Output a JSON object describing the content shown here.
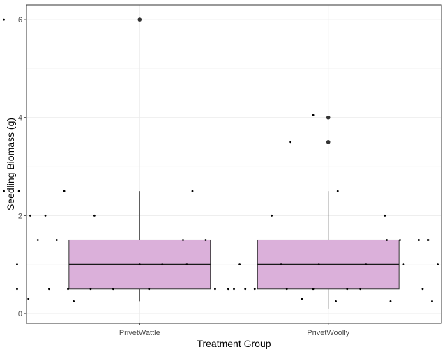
{
  "chart_data": {
    "type": "boxplot",
    "xlabel": "Treatment Group",
    "ylabel": "Seedling Biomass (g)",
    "ylim": [
      -0.2,
      6.3
    ],
    "yticks": [
      0,
      2,
      4,
      6
    ],
    "categories": [
      "PrivetWattle",
      "PrivetWoolly"
    ],
    "grid": true,
    "box_fill": "#dbb0da",
    "boxes": [
      {
        "category": "PrivetWattle",
        "q1": 0.5,
        "median": 1.0,
        "q3": 1.5,
        "whisker_low": 0.25,
        "whisker_high": 2.5,
        "outliers": [
          6.0
        ]
      },
      {
        "category": "PrivetWoolly",
        "q1": 0.5,
        "median": 1.0,
        "q3": 1.5,
        "whisker_low": 0.1,
        "whisker_high": 2.5,
        "outliers": [
          4.0,
          3.5
        ]
      }
    ],
    "jitter_points": [
      [
        [
          0.28,
          6.0
        ],
        [
          0.28,
          2.5
        ],
        [
          0.36,
          2.5
        ],
        [
          0.6,
          2.5
        ],
        [
          1.28,
          2.5
        ],
        [
          0.42,
          2.0
        ],
        [
          0.5,
          2.0
        ],
        [
          0.76,
          2.0
        ],
        [
          0.46,
          1.5
        ],
        [
          0.56,
          1.5
        ],
        [
          1.23,
          1.5
        ],
        [
          1.35,
          1.5
        ],
        [
          0.35,
          0.5
        ],
        [
          0.52,
          0.5
        ],
        [
          0.62,
          0.5
        ],
        [
          0.74,
          0.5
        ],
        [
          0.86,
          0.5
        ],
        [
          1.05,
          0.5
        ],
        [
          1.4,
          0.5
        ],
        [
          1.47,
          0.5
        ],
        [
          1.56,
          0.5
        ],
        [
          1.61,
          0.5
        ],
        [
          0.35,
          1.0
        ],
        [
          1.0,
          1.0
        ],
        [
          1.12,
          1.0
        ],
        [
          1.25,
          1.0
        ],
        [
          1.53,
          1.0
        ],
        [
          1.75,
          1.0
        ],
        [
          0.41,
          0.3
        ],
        [
          0.65,
          0.25
        ]
      ],
      [
        [
          1.92,
          4.05
        ],
        [
          1.8,
          3.5
        ],
        [
          2.05,
          2.5
        ],
        [
          1.7,
          2.0
        ],
        [
          2.3,
          2.0
        ],
        [
          2.91,
          2.0
        ],
        [
          2.31,
          1.5
        ],
        [
          2.38,
          1.5
        ],
        [
          2.48,
          1.5
        ],
        [
          2.53,
          1.5
        ],
        [
          1.5,
          0.5
        ],
        [
          1.78,
          0.5
        ],
        [
          1.92,
          0.5
        ],
        [
          2.1,
          0.5
        ],
        [
          2.17,
          0.5
        ],
        [
          2.5,
          0.5
        ],
        [
          2.74,
          0.5
        ],
        [
          3.0,
          0.5
        ],
        [
          1.95,
          1.0
        ],
        [
          2.2,
          1.0
        ],
        [
          2.4,
          1.0
        ],
        [
          2.58,
          1.0
        ],
        [
          2.7,
          1.0
        ],
        [
          3.02,
          1.0
        ],
        [
          1.86,
          0.3
        ],
        [
          2.04,
          0.25
        ],
        [
          2.33,
          0.25
        ],
        [
          2.55,
          0.25
        ],
        [
          2.84,
          0.25
        ],
        [
          2.95,
          0.1
        ]
      ]
    ]
  }
}
